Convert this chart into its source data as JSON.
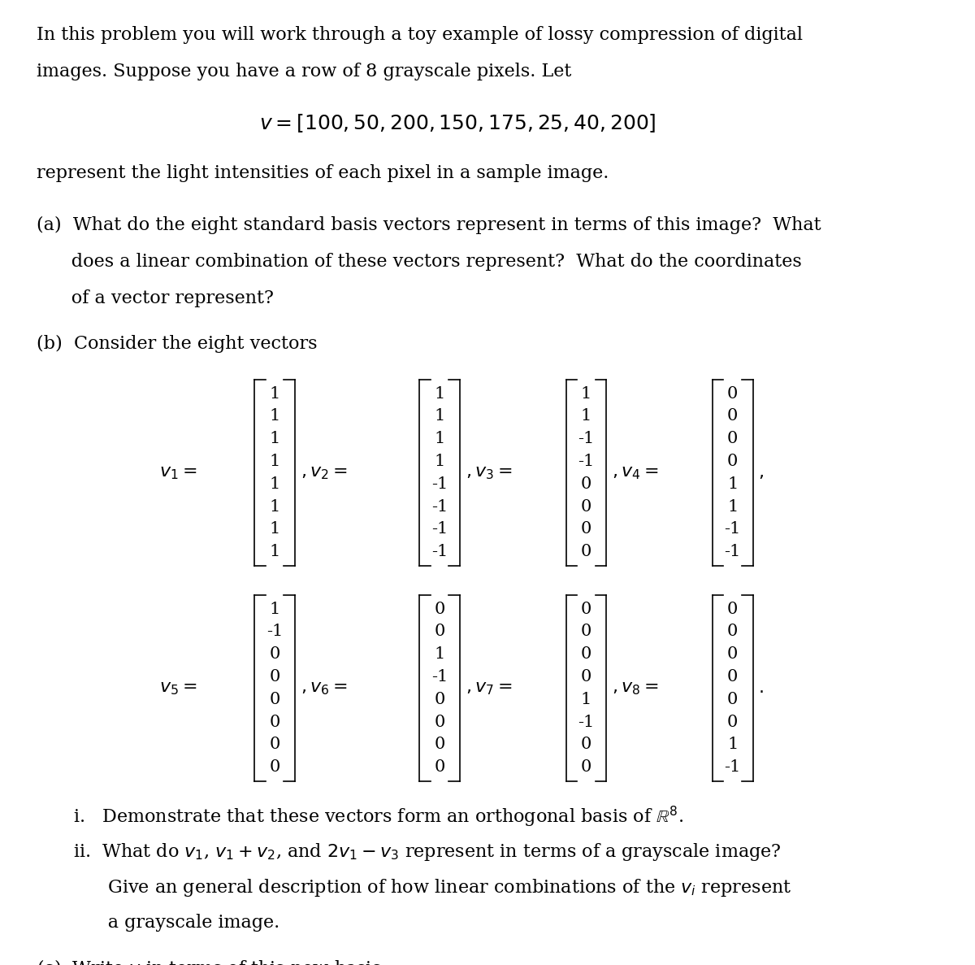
{
  "background_color": "#ffffff",
  "figsize": [
    12.0,
    11.87
  ],
  "dpi": 100,
  "intro_text": "In this problem you will work through a toy example of lossy compression of digital\nimages. Suppose you have a row of 8 grayscale pixels. Let",
  "v_equation": "$v = [100, 50, 200, 150, 175, 25, 40, 200]$",
  "after_v": "represent the light intensities of each pixel in a sample image.",
  "part_a": "(a)  What do the eight standard basis vectors represent in terms of this image?  What\n      does a linear combination of these vectors represent?  What do the coordinates\n      of a vector represent?",
  "part_b_intro": "(b)  Consider the eight vectors",
  "v1": [
    1,
    1,
    1,
    1,
    1,
    1,
    1,
    1
  ],
  "v2": [
    1,
    1,
    1,
    1,
    -1,
    -1,
    -1,
    -1
  ],
  "v3": [
    1,
    1,
    -1,
    -1,
    0,
    0,
    0,
    0
  ],
  "v4": [
    0,
    0,
    0,
    0,
    1,
    1,
    -1,
    -1
  ],
  "v5": [
    1,
    -1,
    0,
    0,
    0,
    0,
    0,
    0
  ],
  "v6": [
    0,
    0,
    1,
    -1,
    0,
    0,
    0,
    0
  ],
  "v7": [
    0,
    0,
    0,
    0,
    1,
    -1,
    0,
    0
  ],
  "v8": [
    0,
    0,
    0,
    0,
    0,
    0,
    1,
    -1
  ],
  "part_b_i": "i.   Demonstrate that these vectors form an orthogonal basis of $\\mathbb{R}^8$.",
  "part_b_ii_line1": "ii.  What do $v_1$, $v_1 + v_2$, and $2v_1 - v_3$ represent in terms of a grayscale image?",
  "part_b_ii_line2": "      Give an general description of how linear combinations of the $v_i$ represent",
  "part_b_ii_line3": "      a grayscale image.",
  "part_c": "(c)  Write $v$ in terms of this new basis.",
  "font_size_body": 16,
  "font_size_equation": 18,
  "font_size_matrix": 15,
  "text_color": "#000000"
}
